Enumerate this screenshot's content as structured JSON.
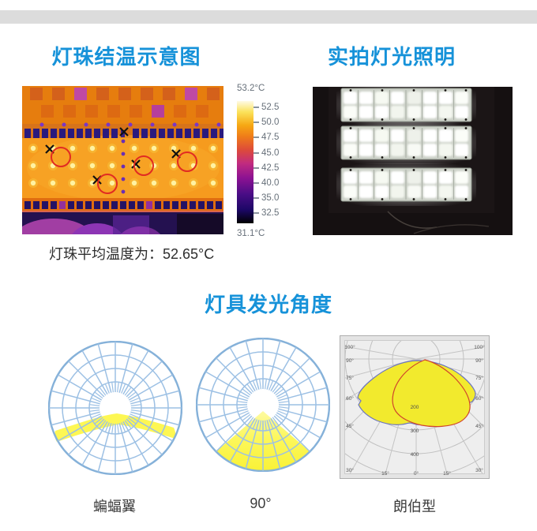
{
  "page": {
    "accent_blue": "#1692d9",
    "top_bar_color": "#dcdcdc"
  },
  "thermal_section": {
    "title": "灯珠结温示意图",
    "caption": "灯珠平均温度为：52.65°C"
  },
  "photo_section": {
    "title": "实拍灯光照明"
  },
  "beam_section": {
    "title": "灯具发光角度",
    "charts": [
      {
        "label": "蝙蝠翼",
        "type": "polar-batwing"
      },
      {
        "label": "90°",
        "type": "polar-cone"
      },
      {
        "label": "朗伯型",
        "type": "polar-lambertian"
      }
    ]
  },
  "colorbar": {
    "max": "53.2°C",
    "min": "31.1°C",
    "ticks": [
      "52.5",
      "50.0",
      "47.5",
      "45.0",
      "42.5",
      "40.0",
      "35.0",
      "32.5"
    ]
  },
  "lambert": {
    "left": [
      "100°",
      "90°",
      "75°",
      "60°",
      "45°",
      "30°"
    ],
    "right": [
      "100°",
      "90°",
      "75°",
      "60°",
      "45°",
      "30°"
    ],
    "bottom": [
      "15°",
      "0°",
      "15°"
    ],
    "radius": [
      "200",
      "300",
      "400"
    ]
  }
}
